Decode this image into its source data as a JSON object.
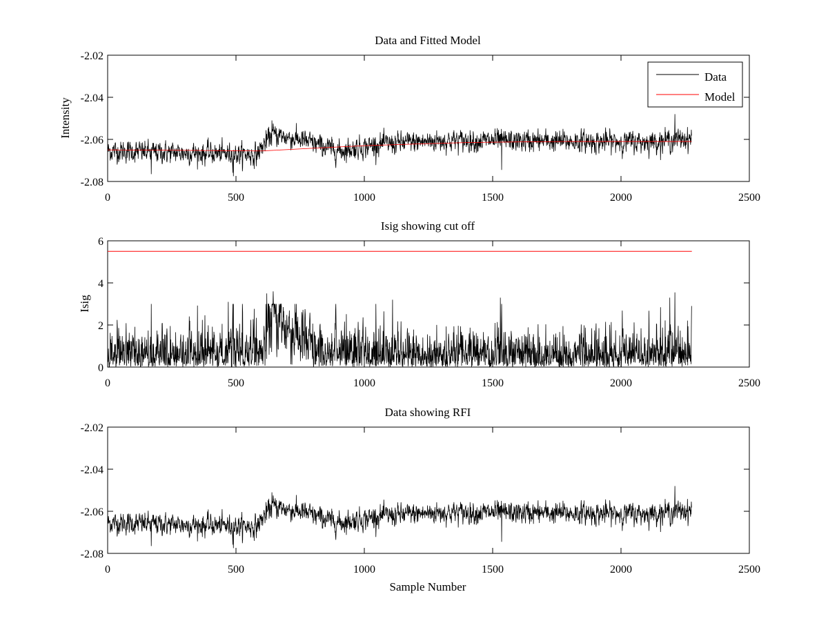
{
  "figure": {
    "background": "#ffffff"
  },
  "colors": {
    "data": "#000000",
    "model": "#ff0000",
    "axes": "#000000"
  },
  "chart_data": [
    {
      "type": "line",
      "title": "Data and Fitted Model",
      "xlabel": "",
      "ylabel": "Intensity",
      "xlim": [
        0,
        2500
      ],
      "ylim": [
        -2.08,
        -2.02
      ],
      "xticks": [
        0,
        500,
        1000,
        1500,
        2000,
        2500
      ],
      "xtick_labels": [
        "0",
        "500",
        "1000",
        "1500",
        "2000",
        "2500"
      ],
      "yticks": [
        -2.08,
        -2.06,
        -2.04,
        -2.02
      ],
      "ytick_labels": [
        "-2.08",
        "-2.06",
        "-2.04",
        "-2.02"
      ],
      "grid": false,
      "legend": {
        "position": "top-right",
        "entries": [
          "Data",
          "Model"
        ]
      },
      "series": [
        {
          "name": "Data",
          "color": "#000000",
          "n_points": 2276,
          "segments": [
            {
              "x": [
                0,
                580
              ],
              "y": [
                -2.0655,
                -2.0672
              ]
            },
            {
              "x": [
                580,
                640
              ],
              "y": [
                -2.0672,
                -2.0575
              ]
            },
            {
              "x": [
                640,
                760
              ],
              "y": [
                -2.0575,
                -2.0605
              ]
            },
            {
              "x": [
                760,
                900
              ],
              "y": [
                -2.0605,
                -2.0655
              ]
            },
            {
              "x": [
                900,
                1050
              ],
              "y": [
                -2.0655,
                -2.0625
              ]
            },
            {
              "x": [
                1050,
                1300
              ],
              "y": [
                -2.0625,
                -2.0605
              ]
            },
            {
              "x": [
                1300,
                2100
              ],
              "y": [
                -2.0605,
                -2.0612
              ]
            },
            {
              "x": [
                2100,
                2276
              ],
              "y": [
                -2.0612,
                -2.0595
              ]
            }
          ],
          "noise_std": 0.0028,
          "extremes": [
            {
              "x": 640,
              "y": -2.051
            },
            {
              "x": 2210,
              "y": -2.048
            },
            {
              "x": 490,
              "y": -2.0775
            },
            {
              "x": 1535,
              "y": -2.0745
            },
            {
              "x": 170,
              "y": -2.0765
            }
          ]
        },
        {
          "name": "Model",
          "color": "#ff0000",
          "x": [
            0,
            300,
            600,
            800,
            1000,
            1200,
            1400,
            1600,
            1800,
            2000,
            2276
          ],
          "y": [
            -2.065,
            -2.0652,
            -2.0655,
            -2.0642,
            -2.063,
            -2.0622,
            -2.0615,
            -2.0612,
            -2.061,
            -2.061,
            -2.061
          ]
        }
      ]
    },
    {
      "type": "line",
      "title": "Isig showing cut off",
      "xlabel": "",
      "ylabel": "Isig",
      "xlim": [
        0,
        2500
      ],
      "ylim": [
        0,
        6
      ],
      "xticks": [
        0,
        500,
        1000,
        1500,
        2000,
        2500
      ],
      "xtick_labels": [
        "0",
        "500",
        "1000",
        "1500",
        "2000",
        "2500"
      ],
      "yticks": [
        0,
        2,
        4,
        6
      ],
      "ytick_labels": [
        "0",
        "2",
        "4",
        "6"
      ],
      "grid": false,
      "series": [
        {
          "color": "#000000",
          "n_points": 2276,
          "typical_mean": 0.8,
          "extremes": [
            {
              "x": 620,
              "y": 3.5
            },
            {
              "x": 645,
              "y": 3.6
            },
            {
              "x": 2210,
              "y": 3.55
            },
            {
              "x": 2190,
              "y": 3.3
            },
            {
              "x": 1530,
              "y": 3.3
            },
            {
              "x": 1110,
              "y": 3.2
            },
            {
              "x": 470,
              "y": 3.1
            },
            {
              "x": 730,
              "y": 3.0
            },
            {
              "x": 2275,
              "y": 2.9
            }
          ]
        },
        {
          "color": "#ff0000",
          "x": [
            0,
            2276
          ],
          "y": [
            5.5,
            5.5
          ]
        }
      ]
    },
    {
      "type": "line",
      "title": "Data showing RFI",
      "xlabel": "Sample Number",
      "ylabel": "",
      "xlim": [
        0,
        2500
      ],
      "ylim": [
        -2.08,
        -2.02
      ],
      "xticks": [
        0,
        500,
        1000,
        1500,
        2000,
        2500
      ],
      "xtick_labels": [
        "0",
        "500",
        "1000",
        "1500",
        "2000",
        "2500"
      ],
      "yticks": [
        -2.08,
        -2.06,
        -2.04,
        -2.02
      ],
      "ytick_labels": [
        "-2.08",
        "-2.06",
        "-2.04",
        "-2.02"
      ],
      "grid": false,
      "series": [
        {
          "color": "#000000",
          "n_points": 2276,
          "same_as": "Data"
        }
      ]
    }
  ]
}
